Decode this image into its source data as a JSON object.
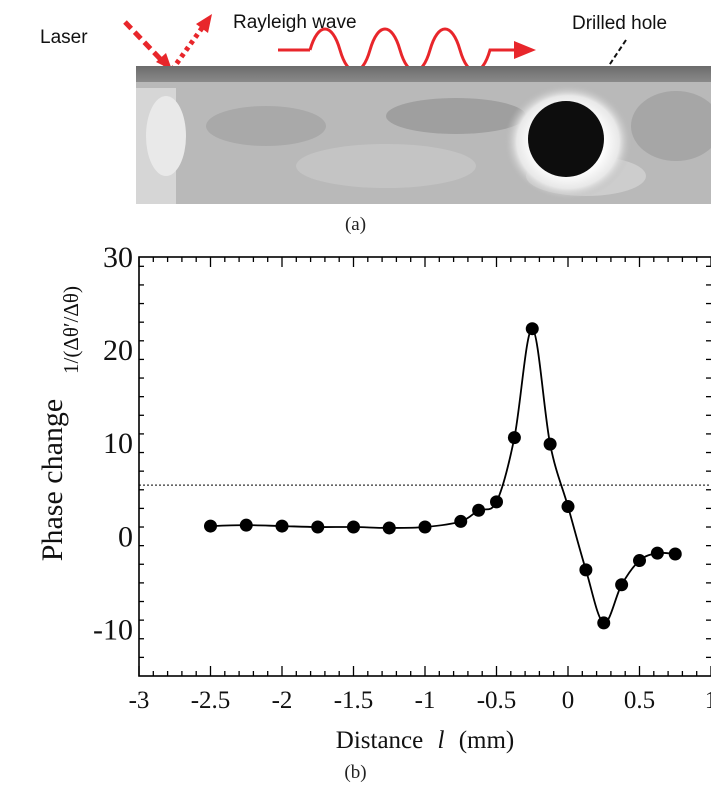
{
  "panel_a": {
    "labels": {
      "laser": "Laser",
      "rayleigh_wave": "Rayleigh wave",
      "drilled_hole": "Drilled hole"
    },
    "caption": "(a)",
    "colors": {
      "arrow_red": "#e8262b"
    }
  },
  "panel_b": {
    "caption": "(b)"
  },
  "chart_data": {
    "type": "line",
    "title": "",
    "xlabel_prefix": "Distance",
    "xlabel_var": "l",
    "xlabel_unit": "(mm)",
    "ylabel_text": "Phase change",
    "ylabel_formula": "1/(Δθ′/Δθ)",
    "xlim": [
      -3,
      1
    ],
    "ylim": [
      -15,
      30
    ],
    "x_ticks": [
      -3,
      -2.5,
      -2,
      -1.5,
      -1,
      -0.5,
      0,
      0.5,
      1
    ],
    "x_tick_labels": [
      "-3",
      "-2.5",
      "-2",
      "-1.5",
      "-1",
      "-0.5",
      "0",
      "0.5",
      "1"
    ],
    "y_ticks": [
      -10,
      0,
      10,
      20,
      30
    ],
    "y_tick_labels": [
      "-10",
      "0",
      "10",
      "20",
      "30"
    ],
    "threshold": 5.5,
    "series": [
      {
        "x": [
          -2.5,
          -2.25,
          -2.0,
          -1.75,
          -1.5,
          -1.25,
          -1.0,
          -0.75,
          -0.625,
          -0.5,
          -0.375,
          -0.25,
          -0.125,
          0.0,
          0.125,
          0.25,
          0.375,
          0.5,
          0.625,
          0.75
        ],
        "y": [
          1.1,
          1.2,
          1.1,
          1.0,
          1.0,
          0.9,
          1.0,
          1.6,
          2.8,
          3.7,
          10.6,
          22.3,
          9.9,
          3.2,
          -3.6,
          -9.3,
          -5.2,
          -2.6,
          -1.8,
          -1.9
        ]
      }
    ]
  }
}
